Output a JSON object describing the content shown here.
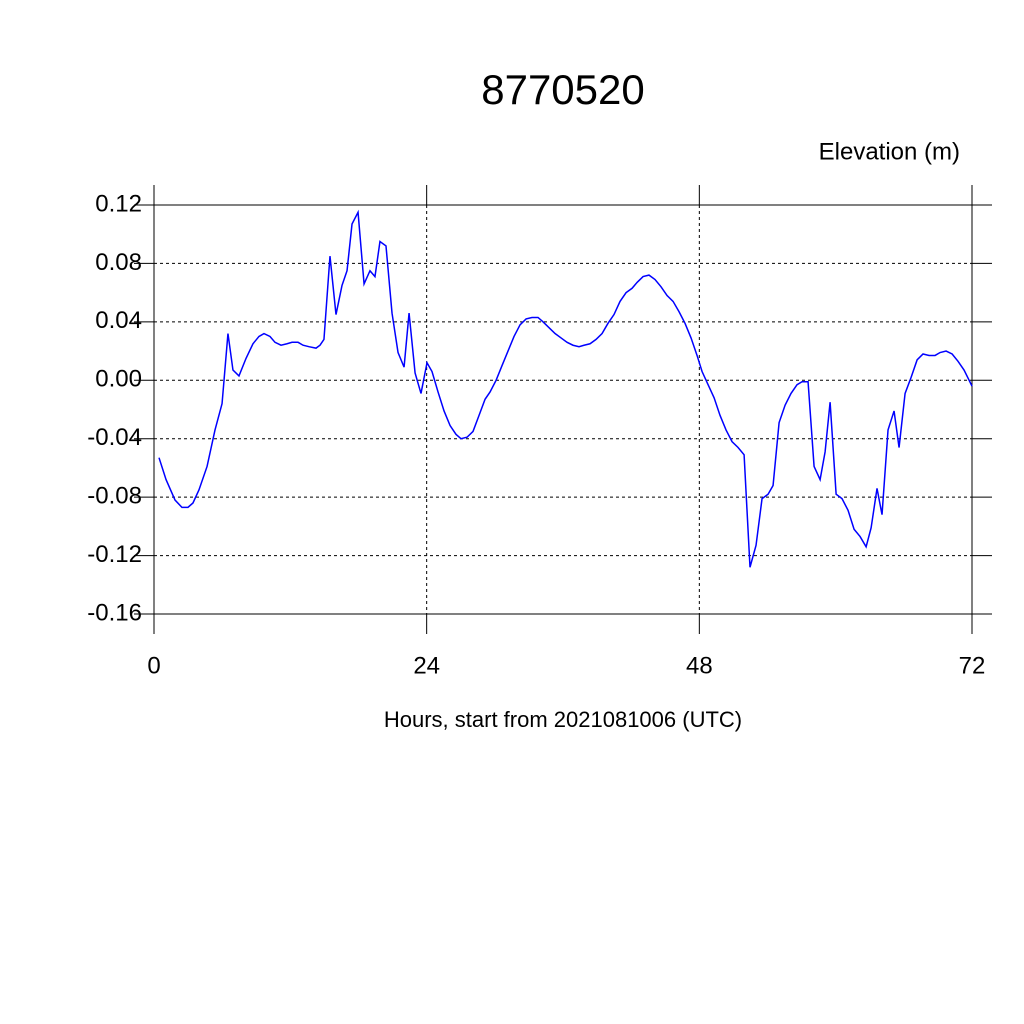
{
  "chart_data": {
    "type": "line",
    "title": "8770520",
    "y_label": "Elevation (m)",
    "x_label": "Hours, start from 2021081006 (UTC)",
    "xlim": [
      0,
      72
    ],
    "xticks": [
      0,
      24,
      48,
      72
    ],
    "ylim": [
      -0.16,
      0.12
    ],
    "yticks": [
      -0.16,
      -0.12,
      -0.08,
      -0.04,
      {
        "value": 0,
        "label": "0.00"
      },
      0.04,
      0.08,
      0.12
    ],
    "grid": true,
    "x": [
      0.44,
      1.06,
      1.85,
      2.46,
      2.99,
      3.43,
      3.96,
      4.67,
      5.37,
      5.99,
      6.51,
      6.95,
      7.48,
      8.1,
      8.71,
      9.24,
      9.68,
      10.21,
      10.65,
      11.18,
      11.71,
      12.15,
      12.68,
      13.12,
      13.64,
      14.26,
      14.61,
      14.96,
      15.49,
      16.02,
      16.55,
      16.99,
      17.43,
      17.96,
      18.49,
      19.01,
      19.45,
      19.89,
      20.42,
      20.95,
      21.48,
      22.01,
      22.45,
      22.98,
      23.5,
      24.03,
      24.47,
      25.0,
      25.53,
      26.06,
      26.58,
      27.02,
      27.55,
      28.08,
      28.61,
      29.14,
      29.58,
      30.11,
      30.63,
      31.16,
      31.69,
      32.22,
      32.75,
      33.27,
      33.8,
      34.24,
      34.77,
      35.3,
      35.83,
      36.36,
      36.88,
      37.41,
      37.85,
      38.38,
      38.91,
      39.44,
      39.96,
      40.49,
      41.02,
      41.55,
      42.08,
      42.52,
      43.05,
      43.57,
      44.1,
      44.63,
      45.16,
      45.69,
      46.21,
      46.74,
      47.27,
      47.8,
      48.24,
      48.77,
      49.3,
      49.82,
      50.35,
      50.88,
      51.41,
      51.94,
      52.46,
      52.99,
      53.52,
      54.05,
      54.49,
      55.02,
      55.55,
      56.07,
      56.6,
      57.04,
      57.57,
      58.1,
      58.63,
      59.07,
      59.51,
      60.04,
      60.56,
      61.09,
      61.62,
      62.15,
      62.68,
      63.12,
      63.64,
      64.08,
      64.61,
      65.14,
      65.58,
      66.11,
      66.64,
      67.17,
      67.69,
      68.22,
      68.75,
      69.19,
      69.72,
      70.25,
      70.77,
      71.3,
      72.0
    ],
    "series": [
      {
        "name": "Elevation",
        "color": "#0000ff",
        "values": [
          -0.053,
          -0.068,
          -0.082,
          -0.087,
          -0.087,
          -0.084,
          -0.075,
          -0.059,
          -0.034,
          -0.016,
          0.032,
          0.007,
          0.003,
          0.015,
          0.025,
          0.03,
          0.032,
          0.03,
          0.026,
          0.024,
          0.025,
          0.026,
          0.026,
          0.024,
          0.023,
          0.022,
          0.024,
          0.028,
          0.085,
          0.045,
          0.065,
          0.075,
          0.107,
          0.115,
          0.066,
          0.075,
          0.071,
          0.095,
          0.092,
          0.046,
          0.019,
          0.009,
          0.046,
          0.005,
          -0.009,
          0.012,
          0.006,
          -0.008,
          -0.021,
          -0.031,
          -0.037,
          -0.04,
          -0.039,
          -0.035,
          -0.024,
          -0.013,
          -0.008,
          0.0,
          0.01,
          0.02,
          0.03,
          0.038,
          0.042,
          0.043,
          0.043,
          0.04,
          0.036,
          0.032,
          0.029,
          0.026,
          0.024,
          0.023,
          0.024,
          0.025,
          0.028,
          0.032,
          0.039,
          0.045,
          0.054,
          0.06,
          0.063,
          0.067,
          0.071,
          0.072,
          0.069,
          0.064,
          0.058,
          0.054,
          0.047,
          0.039,
          0.029,
          0.017,
          0.006,
          -0.003,
          -0.012,
          -0.024,
          -0.034,
          -0.042,
          -0.046,
          -0.051,
          -0.128,
          -0.113,
          -0.081,
          -0.078,
          -0.072,
          -0.029,
          -0.017,
          -0.009,
          -0.003,
          -0.001,
          -0.001,
          -0.059,
          -0.068,
          -0.049,
          -0.015,
          -0.078,
          -0.081,
          -0.089,
          -0.102,
          -0.107,
          -0.114,
          -0.101,
          -0.074,
          -0.092,
          -0.034,
          -0.021,
          -0.046,
          -0.009,
          0.002,
          0.014,
          0.018,
          0.017,
          0.017,
          0.019,
          0.02,
          0.018,
          0.013,
          0.007,
          -0.004
        ]
      }
    ]
  }
}
